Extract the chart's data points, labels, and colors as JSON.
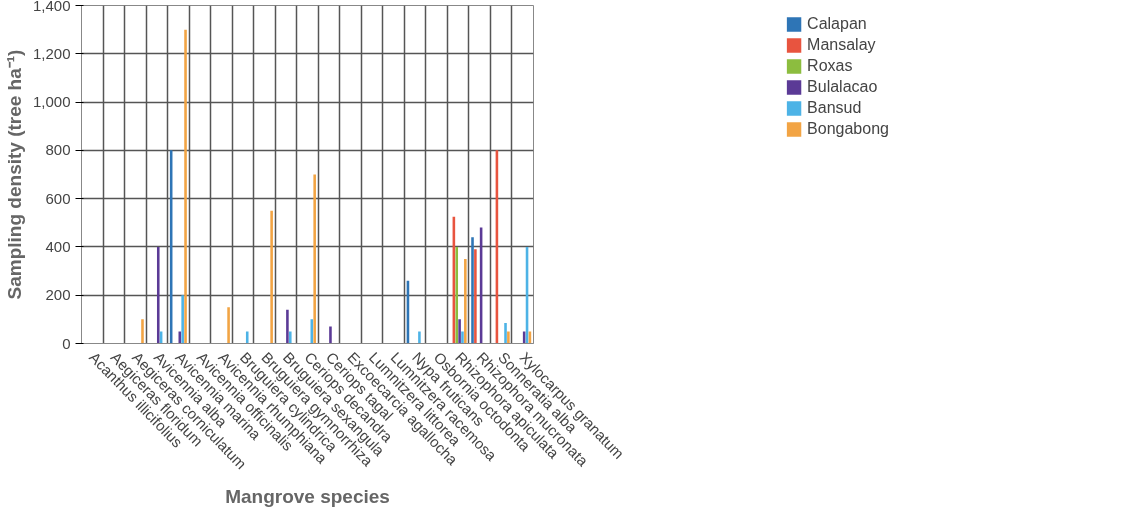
{
  "chart_data": {
    "type": "bar",
    "xlabel": "Mangrove species",
    "ylabel": "Sampling density (tree ha⁻¹)",
    "categories": [
      "Acanthus illicifolius",
      "Aegiceras floridum",
      "Aegiceras corniculatum",
      "Avicennia alba",
      "Avicennia marina",
      "Avicennia officinalis",
      "Avicennia rhumphiana",
      "Bruguiera cylindrica",
      "Bruguiera gymnorrhiza",
      "Bruguiera sexangula",
      "Ceriops decandra",
      "Ceriops tagal",
      "Excoecarcia agallocha",
      "Lumnitzera littorea",
      "Lumnitzera racemosa",
      "Nypa fruticans",
      "Osbornia octodonta",
      "Rhizophora apiculata",
      "Rhizophora mucronata",
      "Sonneratia alba",
      "Xylocarpus granatum"
    ],
    "series": [
      {
        "name": "Calapan",
        "color": "#2e75b6",
        "values": [
          null,
          null,
          null,
          null,
          800,
          null,
          null,
          null,
          null,
          null,
          null,
          null,
          null,
          null,
          null,
          260,
          null,
          null,
          440,
          null,
          null
        ]
      },
      {
        "name": "Mansalay",
        "color": "#e8543f",
        "values": [
          null,
          null,
          null,
          null,
          null,
          null,
          null,
          null,
          null,
          null,
          null,
          null,
          null,
          null,
          null,
          null,
          null,
          525,
          390,
          800,
          null
        ]
      },
      {
        "name": "Roxas",
        "color": "#8cbd3f",
        "values": [
          null,
          null,
          null,
          null,
          null,
          null,
          null,
          null,
          null,
          null,
          null,
          null,
          null,
          null,
          null,
          null,
          null,
          400,
          null,
          null,
          null
        ]
      },
      {
        "name": "Bulalacao",
        "color": "#5b3a96",
        "values": [
          null,
          null,
          null,
          400,
          50,
          null,
          null,
          null,
          null,
          140,
          null,
          70,
          null,
          null,
          null,
          null,
          null,
          100,
          480,
          null,
          50
        ]
      },
      {
        "name": "Bansud",
        "color": "#4db3e6",
        "values": [
          null,
          null,
          null,
          50,
          200,
          null,
          null,
          50,
          null,
          50,
          100,
          null,
          null,
          null,
          null,
          50,
          null,
          50,
          null,
          85,
          400
        ]
      },
      {
        "name": "Bongabong",
        "color": "#f2a444",
        "values": [
          null,
          null,
          100,
          null,
          1300,
          null,
          150,
          null,
          550,
          null,
          700,
          null,
          null,
          null,
          null,
          null,
          null,
          350,
          null,
          50,
          50
        ]
      }
    ],
    "ylim": [
      0,
      1400
    ],
    "yticks": [
      0,
      {
        "value": 200,
        "label": "200"
      },
      {
        "value": 400,
        "label": "400"
      },
      {
        "value": 600,
        "label": "600"
      },
      {
        "value": 800,
        "label": "800"
      },
      {
        "value": 1000,
        "label": "1,000"
      },
      {
        "value": 1200,
        "label": "1,200"
      },
      {
        "value": 1400,
        "label": "1,400"
      }
    ],
    "grid": true,
    "legend": "right"
  }
}
